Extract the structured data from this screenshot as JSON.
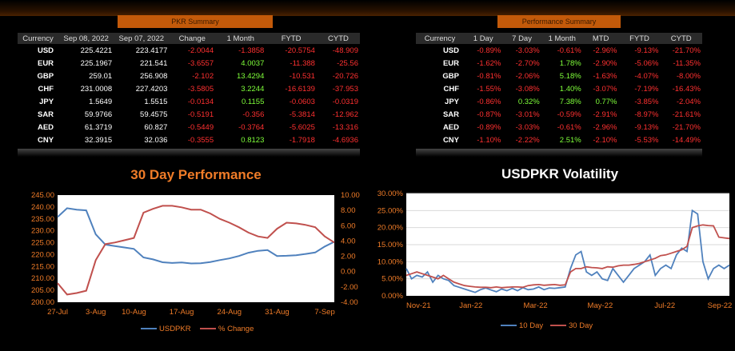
{
  "pkr_summary": {
    "title": "PKR Summary",
    "headers": [
      "Currency",
      "Sep 08, 2022",
      "Sep 07, 2022",
      "Change",
      "1 Month",
      "FYTD",
      "CYTD"
    ],
    "rows": [
      [
        "USD",
        "225.4221",
        "223.4177",
        "-2.0044",
        "-1.3858",
        "-20.5754",
        "-48.909"
      ],
      [
        "EUR",
        "225.1967",
        "221.541",
        "-3.6557",
        "4.0037",
        "-11.388",
        "-25.56"
      ],
      [
        "GBP",
        "259.01",
        "256.908",
        "-2.102",
        "13.4294",
        "-10.531",
        "-20.726"
      ],
      [
        "CHF",
        "231.0008",
        "227.4203",
        "-3.5805",
        "3.2244",
        "-16.6139",
        "-37.953"
      ],
      [
        "JPY",
        "1.5649",
        "1.5515",
        "-0.0134",
        "0.1155",
        "-0.0603",
        "-0.0319"
      ],
      [
        "SAR",
        "59.9766",
        "59.4575",
        "-0.5191",
        "-0.356",
        "-5.3814",
        "-12.962"
      ],
      [
        "AED",
        "61.3719",
        "60.827",
        "-0.5449",
        "-0.3764",
        "-5.6025",
        "-13.316"
      ],
      [
        "CNY",
        "32.3915",
        "32.036",
        "-0.3555",
        "0.8123",
        "-1.7918",
        "-4.6936"
      ]
    ]
  },
  "performance_summary": {
    "title": "Performance Summary",
    "headers": [
      "Currency",
      "1 Day",
      "7 Day",
      "1 Month",
      "MTD",
      "FYTD",
      "CYTD"
    ],
    "rows": [
      [
        "USD",
        "-0.89%",
        "-3.03%",
        "-0.61%",
        "-2.96%",
        "-9.13%",
        "-21.70%"
      ],
      [
        "EUR",
        "-1.62%",
        "-2.70%",
        "1.78%",
        "-2.90%",
        "-5.06%",
        "-11.35%"
      ],
      [
        "GBP",
        "-0.81%",
        "-2.06%",
        "5.18%",
        "-1.63%",
        "-4.07%",
        "-8.00%"
      ],
      [
        "CHF",
        "-1.55%",
        "-3.08%",
        "1.40%",
        "-3.07%",
        "-7.19%",
        "-16.43%"
      ],
      [
        "JPY",
        "-0.86%",
        "0.32%",
        "7.38%",
        "0.77%",
        "-3.85%",
        "-2.04%"
      ],
      [
        "SAR",
        "-0.87%",
        "-3.01%",
        "-0.59%",
        "-2.91%",
        "-8.97%",
        "-21.61%"
      ],
      [
        "AED",
        "-0.89%",
        "-3.03%",
        "-0.61%",
        "-2.96%",
        "-9.13%",
        "-21.70%"
      ],
      [
        "CNY",
        "-1.10%",
        "-2.22%",
        "2.51%",
        "-2.10%",
        "-5.53%",
        "-14.49%"
      ]
    ]
  },
  "colors": {
    "accent": "#c35a0a",
    "title_orange": "#f07c28",
    "negative": "#ff3030",
    "positive": "#7fff3a",
    "series_blue": "#4f81bd",
    "series_red": "#c0504d"
  },
  "chart_data": [
    {
      "type": "line",
      "title": "30 Day Performance",
      "x": [
        "27-Jul",
        "28-Jul",
        "1-Aug",
        "2-Aug",
        "3-Aug",
        "4-Aug",
        "5-Aug",
        "8-Aug",
        "10-Aug",
        "11-Aug",
        "12-Aug",
        "15-Aug",
        "16-Aug",
        "17-Aug",
        "18-Aug",
        "19-Aug",
        "22-Aug",
        "23-Aug",
        "24-Aug",
        "25-Aug",
        "26-Aug",
        "29-Aug",
        "30-Aug",
        "31-Aug",
        "1-Sep",
        "2-Sep",
        "5-Sep",
        "6-Sep",
        "7-Sep",
        "8-Sep"
      ],
      "tick_labels": [
        "27-Jul",
        "3-Aug",
        "10-Aug",
        "17-Aug",
        "24-Aug",
        "31-Aug",
        "7-Sep"
      ],
      "tick_index": [
        0,
        4,
        8,
        13,
        18,
        23,
        28
      ],
      "y_left_range": [
        200,
        245
      ],
      "y_left_ticks": [
        "200.00",
        "205.00",
        "210.00",
        "215.00",
        "220.00",
        "225.00",
        "230.00",
        "235.00",
        "240.00",
        "245.00"
      ],
      "y_right_range": [
        -4,
        10
      ],
      "y_right_ticks": [
        "-4.00",
        "-2.00",
        "0.00",
        "2.00",
        "4.00",
        "6.00",
        "8.00",
        "10.00"
      ],
      "series": [
        {
          "name": "USDPKR",
          "axis": "left",
          "values": [
            235.8,
            239.5,
            238.9,
            238.6,
            228.5,
            224.2,
            223.6,
            223.0,
            222.4,
            218.8,
            218.0,
            216.8,
            216.5,
            216.7,
            216.3,
            216.4,
            216.9,
            217.7,
            218.4,
            219.4,
            220.8,
            221.6,
            221.9,
            219.4,
            219.5,
            219.7,
            220.3,
            220.9,
            223.4,
            225.4
          ]
        },
        {
          "name": "% Change",
          "axis": "right",
          "values": [
            -1.5,
            -3.0,
            -2.8,
            -2.5,
            1.5,
            3.6,
            3.8,
            4.1,
            4.4,
            7.7,
            8.2,
            8.6,
            8.6,
            8.4,
            8.1,
            8.1,
            7.6,
            6.9,
            6.4,
            5.8,
            5.1,
            4.6,
            4.4,
            5.6,
            6.4,
            6.3,
            6.1,
            5.8,
            4.6,
            3.8
          ]
        }
      ],
      "legend_position": "bottom"
    },
    {
      "type": "line",
      "title": "USDPKR Volatility",
      "x_ticks": [
        "Nov-21",
        "Jan-22",
        "Mar-22",
        "May-22",
        "Jul-22",
        "Sep-22"
      ],
      "y_range": [
        0,
        30
      ],
      "y_ticks": [
        "0.00%",
        "5.00%",
        "10.00%",
        "15.00%",
        "20.00%",
        "25.00%",
        "30.00%"
      ],
      "grid": true,
      "series": [
        {
          "name": "10 Day",
          "values": [
            8,
            5,
            6,
            5.5,
            7,
            4,
            6,
            5,
            4.5,
            3,
            2.5,
            2,
            1.5,
            1,
            1.8,
            2.3,
            1.7,
            1.2,
            2,
            1.5,
            2.2,
            1.5,
            2.4,
            1.8,
            2,
            2.6,
            1.8,
            2.3,
            2.2,
            2.4,
            2.6,
            8,
            12,
            13,
            7,
            6,
            7,
            5,
            4.5,
            8,
            6,
            4,
            6,
            8,
            9,
            10,
            12,
            6,
            8,
            9,
            8,
            12,
            14,
            13,
            25,
            24,
            10,
            5,
            8,
            9,
            8,
            9
          ]
        },
        {
          "name": "30 Day",
          "values": [
            6,
            6.5,
            7,
            6.5,
            6,
            5.5,
            5,
            6,
            5,
            4,
            3.5,
            3,
            2.8,
            2.6,
            2.5,
            2.5,
            2.4,
            2.6,
            2.4,
            2.5,
            2.6,
            2.6,
            2.5,
            3,
            3.2,
            3.3,
            3.1,
            3.2,
            3.3,
            3.1,
            3.2,
            7,
            8,
            8,
            8.5,
            8.3,
            8.2,
            8,
            8.5,
            8.4,
            8.8,
            9,
            9,
            9.2,
            9.5,
            10,
            10.5,
            11,
            11.8,
            12,
            12.5,
            13,
            13.5,
            14.5,
            20,
            20.5,
            20.8,
            20.6,
            20.5,
            17.2,
            17,
            16.8
          ]
        }
      ],
      "legend_position": "bottom"
    }
  ]
}
